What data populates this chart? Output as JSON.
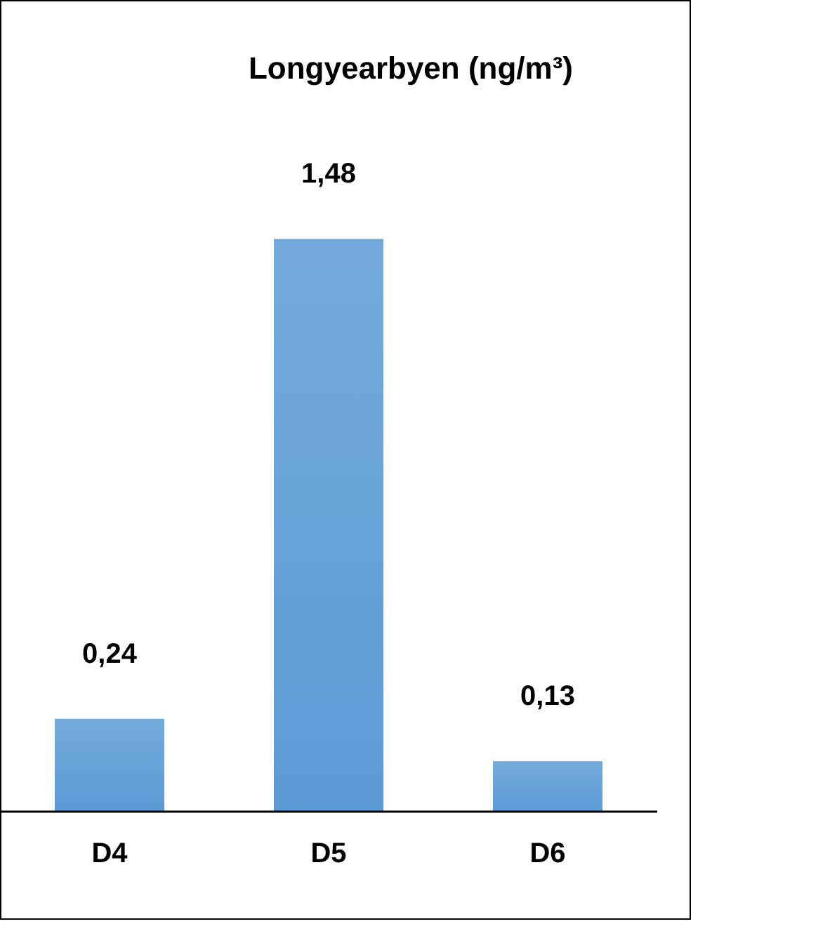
{
  "chart_data": {
    "type": "bar",
    "title": "Longyearbyen (ng/m³)",
    "categories": [
      "D4",
      "D5",
      "D6"
    ],
    "values": [
      0.24,
      1.48,
      0.13
    ],
    "value_labels": [
      "0,24",
      "1,48",
      "0,13"
    ],
    "color": "#5b9bd5",
    "grid": false,
    "legend": false
  }
}
